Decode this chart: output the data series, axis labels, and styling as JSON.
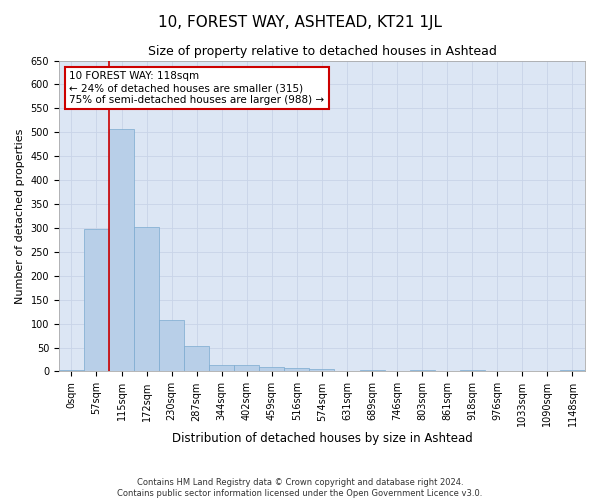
{
  "title": "10, FOREST WAY, ASHTEAD, KT21 1JL",
  "subtitle": "Size of property relative to detached houses in Ashtead",
  "xlabel": "Distribution of detached houses by size in Ashtead",
  "ylabel": "Number of detached properties",
  "footer_line1": "Contains HM Land Registry data © Crown copyright and database right 2024.",
  "footer_line2": "Contains public sector information licensed under the Open Government Licence v3.0.",
  "bin_labels": [
    "0sqm",
    "57sqm",
    "115sqm",
    "172sqm",
    "230sqm",
    "287sqm",
    "344sqm",
    "402sqm",
    "459sqm",
    "516sqm",
    "574sqm",
    "631sqm",
    "689sqm",
    "746sqm",
    "803sqm",
    "861sqm",
    "918sqm",
    "976sqm",
    "1033sqm",
    "1090sqm",
    "1148sqm"
  ],
  "bar_heights": [
    4,
    298,
    507,
    302,
    107,
    53,
    13,
    14,
    10,
    7,
    5,
    2,
    4,
    0,
    4,
    0,
    3,
    0,
    2,
    0,
    3
  ],
  "bar_color": "#b8cfe8",
  "bar_edge_color": "#7aaad0",
  "annotation_text": "10 FOREST WAY: 118sqm\n← 24% of detached houses are smaller (315)\n75% of semi-detached houses are larger (988) →",
  "annotation_box_facecolor": "#ffffff",
  "annotation_box_edgecolor": "#cc0000",
  "red_line_x": 1.5,
  "ylim": [
    0,
    650
  ],
  "yticks": [
    0,
    50,
    100,
    150,
    200,
    250,
    300,
    350,
    400,
    450,
    500,
    550,
    600,
    650
  ],
  "grid_color": "#c8d4e8",
  "background_color": "#dce6f4",
  "title_fontsize": 11,
  "subtitle_fontsize": 9,
  "xlabel_fontsize": 8.5,
  "ylabel_fontsize": 8,
  "tick_fontsize": 7,
  "annotation_fontsize": 7.5
}
